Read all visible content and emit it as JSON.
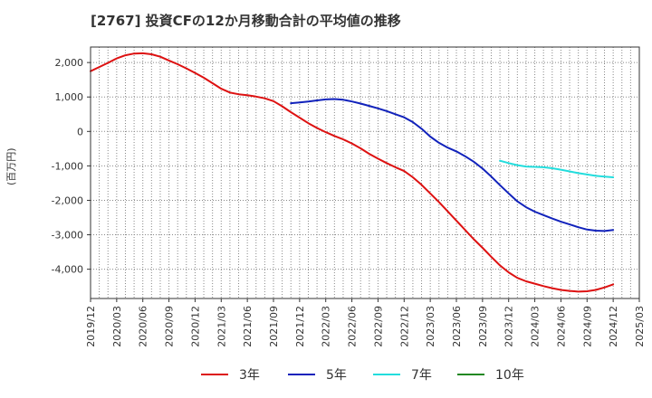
{
  "title": "[2767]  投資CFの12か月移動合計の平均値の推移",
  "chart_data": {
    "type": "line",
    "title": "[2767]  投資CFの12か月移動合計の平均値の推移",
    "ylabel": "(百万円)",
    "xlabel": "",
    "ylim": [
      -4850,
      2450
    ],
    "yticks": [
      2000,
      1000,
      0,
      -1000,
      -2000,
      -3000,
      -4000
    ],
    "ytick_labels": [
      "2,000",
      "1,000",
      "0",
      "-1,000",
      "-2,000",
      "-3,000",
      "-4,000"
    ],
    "xlim": [
      "2019-12",
      "2025-03"
    ],
    "xticks": [
      "2019/12",
      "2020/03",
      "2020/06",
      "2020/09",
      "2020/12",
      "2021/03",
      "2021/06",
      "2021/09",
      "2021/12",
      "2022/03",
      "2022/06",
      "2022/09",
      "2022/12",
      "2023/03",
      "2023/06",
      "2023/09",
      "2023/12",
      "2024/03",
      "2024/06",
      "2024/09",
      "2024/12",
      "2025/03"
    ],
    "grid": true,
    "legend_position": "bottom",
    "series": [
      {
        "name": "3年",
        "color": "#dd1111",
        "x": [
          "2019-12",
          "2020-01",
          "2020-02",
          "2020-03",
          "2020-04",
          "2020-05",
          "2020-06",
          "2020-07",
          "2020-08",
          "2020-09",
          "2020-10",
          "2020-11",
          "2020-12",
          "2021-01",
          "2021-02",
          "2021-03",
          "2021-04",
          "2021-05",
          "2021-06",
          "2021-07",
          "2021-08",
          "2021-09",
          "2021-10",
          "2021-11",
          "2021-12",
          "2022-01",
          "2022-02",
          "2022-03",
          "2022-04",
          "2022-05",
          "2022-06",
          "2022-07",
          "2022-08",
          "2022-09",
          "2022-10",
          "2022-11",
          "2022-12",
          "2023-01",
          "2023-02",
          "2023-03",
          "2023-04",
          "2023-05",
          "2023-06",
          "2023-07",
          "2023-08",
          "2023-09",
          "2023-10",
          "2023-11",
          "2023-12",
          "2024-01",
          "2024-02",
          "2024-03",
          "2024-04",
          "2024-05",
          "2024-06",
          "2024-07",
          "2024-08",
          "2024-09",
          "2024-10",
          "2024-11",
          "2024-12"
        ],
        "values": [
          1750,
          1870,
          1990,
          2120,
          2210,
          2260,
          2270,
          2240,
          2170,
          2060,
          1950,
          1830,
          1700,
          1560,
          1400,
          1240,
          1130,
          1080,
          1050,
          1010,
          960,
          880,
          730,
          560,
          400,
          240,
          100,
          -20,
          -130,
          -230,
          -350,
          -490,
          -650,
          -790,
          -920,
          -1040,
          -1150,
          -1330,
          -1550,
          -1800,
          -2050,
          -2320,
          -2590,
          -2860,
          -3130,
          -3380,
          -3640,
          -3890,
          -4090,
          -4250,
          -4350,
          -4420,
          -4490,
          -4550,
          -4600,
          -4630,
          -4650,
          -4640,
          -4600,
          -4530,
          -4440
        ]
      },
      {
        "name": "5年",
        "color": "#1122bb",
        "x": [
          "2021-11",
          "2021-12",
          "2022-01",
          "2022-02",
          "2022-03",
          "2022-04",
          "2022-05",
          "2022-06",
          "2022-07",
          "2022-08",
          "2022-09",
          "2022-10",
          "2022-11",
          "2022-12",
          "2023-01",
          "2023-02",
          "2023-03",
          "2023-04",
          "2023-05",
          "2023-06",
          "2023-07",
          "2023-08",
          "2023-09",
          "2023-10",
          "2023-11",
          "2023-12",
          "2024-01",
          "2024-02",
          "2024-03",
          "2024-04",
          "2024-05",
          "2024-06",
          "2024-07",
          "2024-08",
          "2024-09",
          "2024-10",
          "2024-11",
          "2024-12"
        ],
        "values": [
          820,
          840,
          870,
          900,
          930,
          940,
          920,
          870,
          810,
          740,
          670,
          590,
          500,
          410,
          270,
          80,
          -150,
          -330,
          -470,
          -580,
          -720,
          -880,
          -1080,
          -1310,
          -1560,
          -1800,
          -2030,
          -2200,
          -2330,
          -2430,
          -2530,
          -2620,
          -2700,
          -2780,
          -2850,
          -2880,
          -2890,
          -2860
        ]
      },
      {
        "name": "7年",
        "color": "#22dddd",
        "x": [
          "2023-11",
          "2023-12",
          "2024-01",
          "2024-02",
          "2024-03",
          "2024-04",
          "2024-05",
          "2024-06",
          "2024-07",
          "2024-08",
          "2024-09",
          "2024-10",
          "2024-11",
          "2024-12"
        ],
        "values": [
          -850,
          -920,
          -980,
          -1020,
          -1030,
          -1040,
          -1070,
          -1110,
          -1160,
          -1210,
          -1250,
          -1290,
          -1310,
          -1330
        ]
      },
      {
        "name": "10年",
        "color": "#228822",
        "x": [],
        "values": []
      }
    ]
  }
}
